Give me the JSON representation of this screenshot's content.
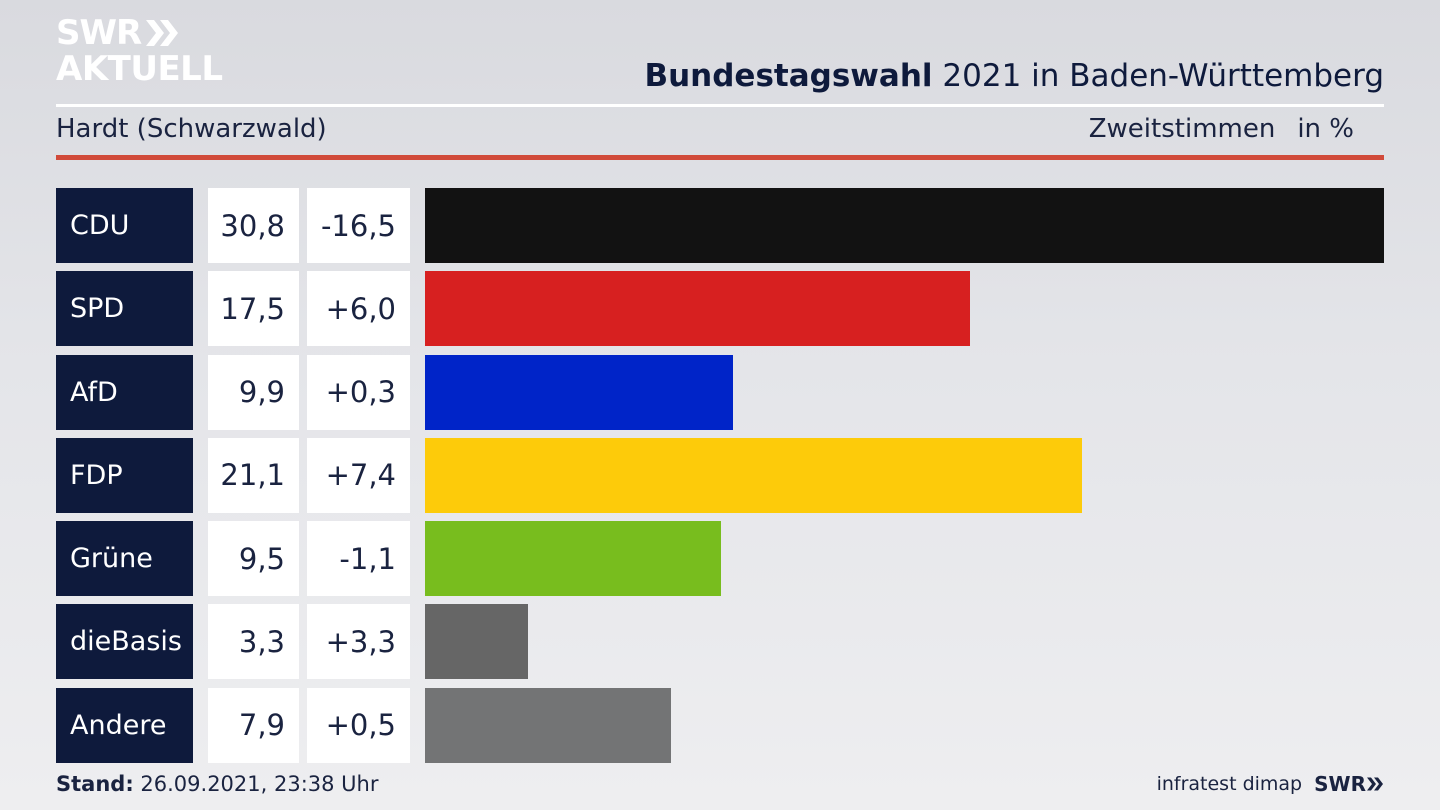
{
  "brand": {
    "line1": "SWR",
    "line2": "AKTUELL",
    "footer_logo": "SWR"
  },
  "title_bold": "Bundestagswahl",
  "title_rest": " 2021 in Baden-Württemberg",
  "region": "Hardt (Schwarzwald)",
  "measure": "Zweitstimmen",
  "unit": "in %",
  "stand_label": "Stand:",
  "stand_value": " 26.09.2021, 23:38 Uhr",
  "source": "infratest dimap",
  "chart_data": {
    "type": "bar",
    "orientation": "horizontal",
    "categories": [
      "CDU",
      "SPD",
      "AfD",
      "FDP",
      "Grüne",
      "dieBasis",
      "Andere"
    ],
    "values": [
      30.8,
      17.5,
      9.9,
      21.1,
      9.5,
      3.3,
      7.9
    ],
    "value_labels": [
      "30,8",
      "17,5",
      "9,9",
      "21,1",
      "9,5",
      "3,3",
      "7,9"
    ],
    "changes": [
      "-16,5",
      "+6,0",
      "+0,3",
      "+7,4",
      "-1,1",
      "+3,3",
      "+0,5"
    ],
    "colors": [
      "#121212",
      "#d72020",
      "#0024c8",
      "#fdcb0a",
      "#78bd1e",
      "#666666",
      "#737475"
    ],
    "title": "Bundestagswahl 2021 in Baden-Württemberg",
    "xlim": [
      0,
      30.8
    ]
  }
}
